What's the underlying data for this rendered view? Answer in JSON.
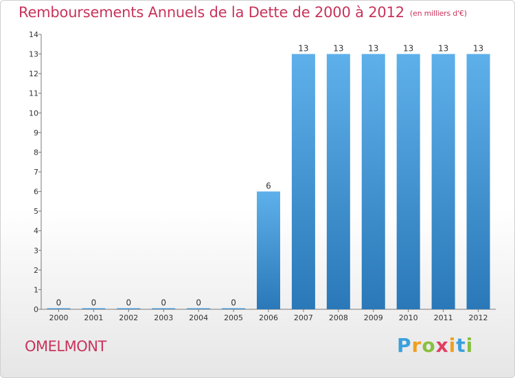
{
  "title": "Remboursements Annuels de la Dette de 2000 à 2012",
  "unit": "(en milliers d'€)",
  "commune": "OMELMONT",
  "brand": "Proxiti",
  "chart_data": {
    "type": "bar",
    "title": "Remboursements Annuels de la Dette de 2000 à 2012",
    "subtitle": "(en milliers d'€)",
    "categories": [
      "2000",
      "2001",
      "2002",
      "2003",
      "2004",
      "2005",
      "2006",
      "2007",
      "2008",
      "2009",
      "2010",
      "2011",
      "2012"
    ],
    "values": [
      0,
      0,
      0,
      0,
      0,
      0,
      6,
      13,
      13,
      13,
      13,
      13,
      13
    ],
    "ylim": [
      0,
      14
    ],
    "yticks": [
      0,
      1,
      2,
      3,
      4,
      5,
      6,
      7,
      8,
      9,
      10,
      11,
      12,
      13,
      14
    ],
    "xlabel": "",
    "ylabel": "",
    "grid": false,
    "bar_color_top": "#5aacE6",
    "bar_color_bottom": "#2a78b8",
    "title_color": "#c8335b"
  }
}
